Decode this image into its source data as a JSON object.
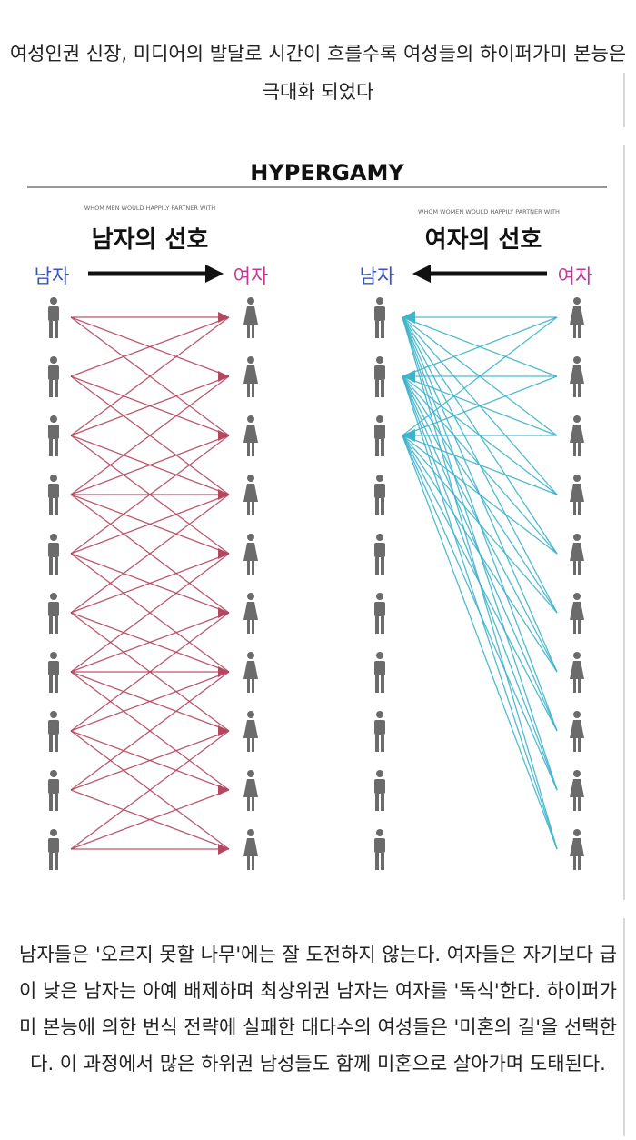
{
  "caption_top": "여성인권 신장, 미디어의 발달로 시간이 흐를수록 여성들의 하이퍼가미 본능은 극대화 되었다",
  "caption_bottom": "남자들은 '오르지 못할 나무'에는 잘 도전하지 않는다. 여자들은 자기보다 급이 낮은 남자는 아예 배제하며 최상위권 남자는 여자를 '독식'한다. 하이퍼가미 본능에 의한 번식 전략에 실패한 대다수의 여성들은 '미혼의 길'을 선택한다. 이 과정에서 많은 하위권 남성들도 함께 미혼으로 살아가며 도태된다.",
  "diagram": {
    "title": "HYPERGAMY",
    "left": {
      "subtitle": "WHOM MEN WOULD HAPPILY PARTNER WITH",
      "heading": "남자의 선호",
      "from_label": "남자",
      "to_label": "여자",
      "arrow_direction": "right",
      "line_color": "#b5475f"
    },
    "right": {
      "subtitle": "WHOM WOMEN WOULD HAPPILY PARTNER WITH",
      "heading": "여자의 선호",
      "from_label": "여자",
      "to_label": "남자",
      "arrow_direction": "left",
      "line_color": "#3fb3cc"
    },
    "people_per_column": 10,
    "colors": {
      "man_label": "#3a55b5",
      "woman_label": "#c2389a",
      "figure": "#6b6b6b"
    }
  }
}
